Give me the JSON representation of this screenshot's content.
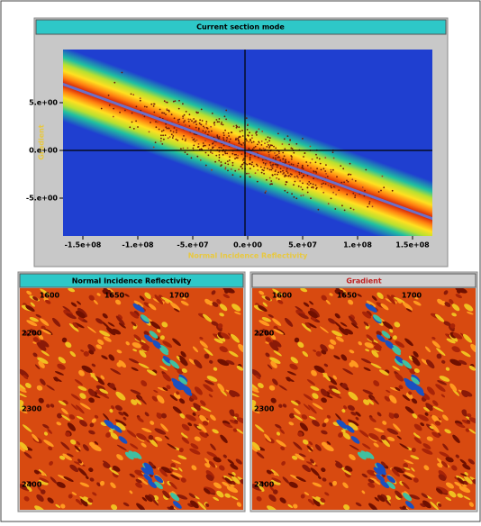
{
  "top_panel": {
    "title": "Current section mode",
    "x_axis_label": "Normal Incidence Reflectivity",
    "y_axis_label": "Gradient",
    "x_ticks": [
      "-1.5e+08",
      "-1.e+08",
      "-5.e+07",
      "0.e+00",
      "5.e+07",
      "1.e+08",
      "1.5e+08"
    ],
    "y_ticks": [
      "5.e+00",
      "0.e+00",
      "-5.e+00"
    ]
  },
  "sections": [
    {
      "title": "Normal Incidence Reflectivity",
      "x_ticks": [
        "1600",
        "1650",
        "1700"
      ],
      "y_ticks": [
        "2200",
        "2300",
        "2400"
      ]
    },
    {
      "title": "Gradient",
      "x_ticks": [
        "1600",
        "1650",
        "1700"
      ],
      "y_ticks": [
        "2200",
        "2300",
        "2400"
      ]
    }
  ]
}
